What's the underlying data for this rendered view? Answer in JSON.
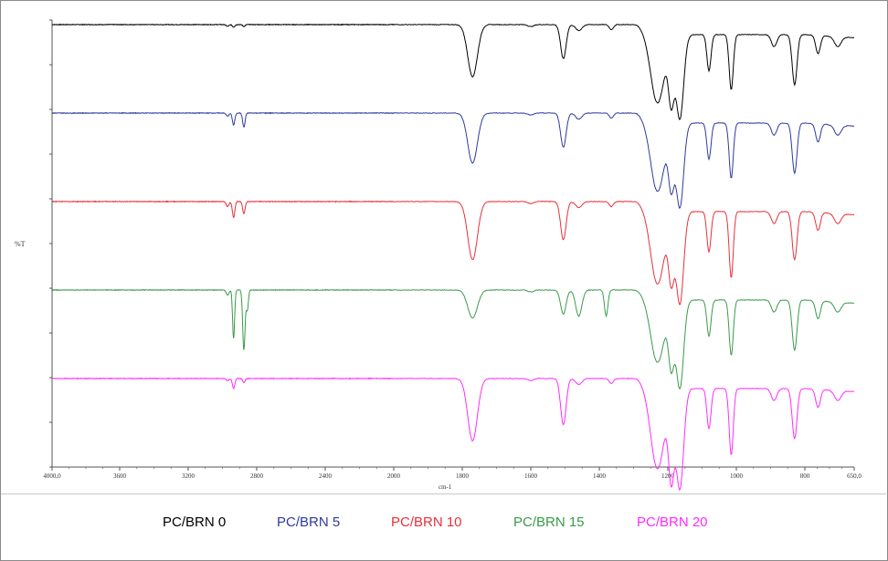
{
  "chart_data": {
    "type": "line",
    "xlabel": "cm-1",
    "ylabel": "%T",
    "xlim": [
      4000,
      650
    ],
    "x_reversed": true,
    "x_ticks": [
      "4000,0",
      "3600",
      "3200",
      "2800",
      "2400",
      "2000",
      "1800",
      "1600",
      "1400",
      "1200",
      "1000",
      "800",
      "650,0"
    ],
    "grid": false,
    "legend_position": "bottom",
    "series": [
      {
        "name": "PC/BRN 0",
        "color": "#000000",
        "baseline": 0.955,
        "dips": [
          [
            2970,
            0.018,
            8
          ],
          [
            2935,
            0.025,
            7
          ],
          [
            2875,
            0.018,
            7
          ],
          [
            1770,
            0.52,
            14
          ],
          [
            1600,
            0.02,
            8
          ],
          [
            1505,
            0.34,
            8
          ],
          [
            1460,
            0.06,
            9
          ],
          [
            1365,
            0.05,
            6
          ],
          [
            1230,
            0.68,
            20
          ],
          [
            1190,
            0.6,
            8
          ],
          [
            1165,
            0.84,
            11
          ],
          [
            1080,
            0.36,
            6
          ],
          [
            1015,
            0.55,
            6
          ],
          [
            890,
            0.12,
            8
          ],
          [
            830,
            0.5,
            7
          ],
          [
            760,
            0.18,
            7
          ],
          [
            700,
            0.1,
            10
          ]
        ],
        "slopes": [
          [
            1290,
            1240,
            0.2
          ],
          [
            800,
            650,
            0.06
          ]
        ]
      },
      {
        "name": "PC/BRN 5",
        "color": "#2e3a9e",
        "baseline": 0.955,
        "dips": [
          [
            2970,
            0.03,
            8
          ],
          [
            2935,
            0.12,
            7
          ],
          [
            2875,
            0.14,
            7
          ],
          [
            1770,
            0.5,
            14
          ],
          [
            1600,
            0.02,
            8
          ],
          [
            1505,
            0.34,
            8
          ],
          [
            1460,
            0.06,
            9
          ],
          [
            1365,
            0.05,
            6
          ],
          [
            1230,
            0.68,
            20
          ],
          [
            1190,
            0.56,
            8
          ],
          [
            1165,
            0.84,
            11
          ],
          [
            1080,
            0.36,
            6
          ],
          [
            1015,
            0.55,
            6
          ],
          [
            890,
            0.12,
            8
          ],
          [
            830,
            0.5,
            7
          ],
          [
            760,
            0.18,
            7
          ],
          [
            700,
            0.1,
            10
          ]
        ],
        "slopes": [
          [
            1290,
            1240,
            0.2
          ],
          [
            800,
            650,
            0.06
          ]
        ]
      },
      {
        "name": "PC/BRN 10",
        "color": "#e8303a",
        "baseline": 0.955,
        "dips": [
          [
            2970,
            0.05,
            8
          ],
          [
            2935,
            0.16,
            7
          ],
          [
            2875,
            0.12,
            7
          ],
          [
            1770,
            0.58,
            14
          ],
          [
            1600,
            0.02,
            8
          ],
          [
            1505,
            0.38,
            8
          ],
          [
            1460,
            0.06,
            9
          ],
          [
            1365,
            0.05,
            6
          ],
          [
            1230,
            0.72,
            20
          ],
          [
            1190,
            0.6,
            8
          ],
          [
            1165,
            0.92,
            11
          ],
          [
            1080,
            0.4,
            6
          ],
          [
            1015,
            0.66,
            6
          ],
          [
            890,
            0.12,
            8
          ],
          [
            830,
            0.48,
            7
          ],
          [
            760,
            0.18,
            7
          ],
          [
            700,
            0.1,
            10
          ]
        ],
        "slopes": [
          [
            1290,
            1240,
            0.2
          ],
          [
            800,
            650,
            0.06
          ]
        ]
      },
      {
        "name": "PC/BRN 15",
        "color": "#3a9a4a",
        "baseline": 0.955,
        "dips": [
          [
            2970,
            0.05,
            8
          ],
          [
            2935,
            0.48,
            6
          ],
          [
            2875,
            0.6,
            7
          ],
          [
            2855,
            0.2,
            6
          ],
          [
            1770,
            0.28,
            14
          ],
          [
            1600,
            0.02,
            8
          ],
          [
            1505,
            0.24,
            8
          ],
          [
            1460,
            0.26,
            9
          ],
          [
            1380,
            0.26,
            5
          ],
          [
            1230,
            0.62,
            20
          ],
          [
            1190,
            0.58,
            8
          ],
          [
            1165,
            0.88,
            11
          ],
          [
            1080,
            0.36,
            6
          ],
          [
            1015,
            0.55,
            6
          ],
          [
            890,
            0.12,
            8
          ],
          [
            830,
            0.5,
            7
          ],
          [
            760,
            0.18,
            7
          ],
          [
            700,
            0.1,
            10
          ]
        ],
        "slopes": [
          [
            1290,
            1240,
            0.2
          ],
          [
            800,
            650,
            0.06
          ]
        ]
      },
      {
        "name": "PC/BRN 20",
        "color": "#ff2bff",
        "baseline": 0.955,
        "dips": [
          [
            2970,
            0.02,
            8
          ],
          [
            2935,
            0.1,
            7
          ],
          [
            2875,
            0.04,
            7
          ],
          [
            1770,
            0.62,
            14
          ],
          [
            1600,
            0.02,
            8
          ],
          [
            1505,
            0.46,
            8
          ],
          [
            1460,
            0.06,
            9
          ],
          [
            1365,
            0.05,
            6
          ],
          [
            1230,
            0.8,
            20
          ],
          [
            1190,
            0.8,
            8
          ],
          [
            1165,
            1.0,
            11
          ],
          [
            1080,
            0.4,
            6
          ],
          [
            1015,
            0.66,
            6
          ],
          [
            890,
            0.12,
            8
          ],
          [
            830,
            0.5,
            7
          ],
          [
            760,
            0.18,
            7
          ],
          [
            700,
            0.1,
            10
          ]
        ],
        "slopes": [
          [
            1290,
            1240,
            0.2
          ],
          [
            800,
            650,
            0.06
          ]
        ]
      }
    ]
  }
}
